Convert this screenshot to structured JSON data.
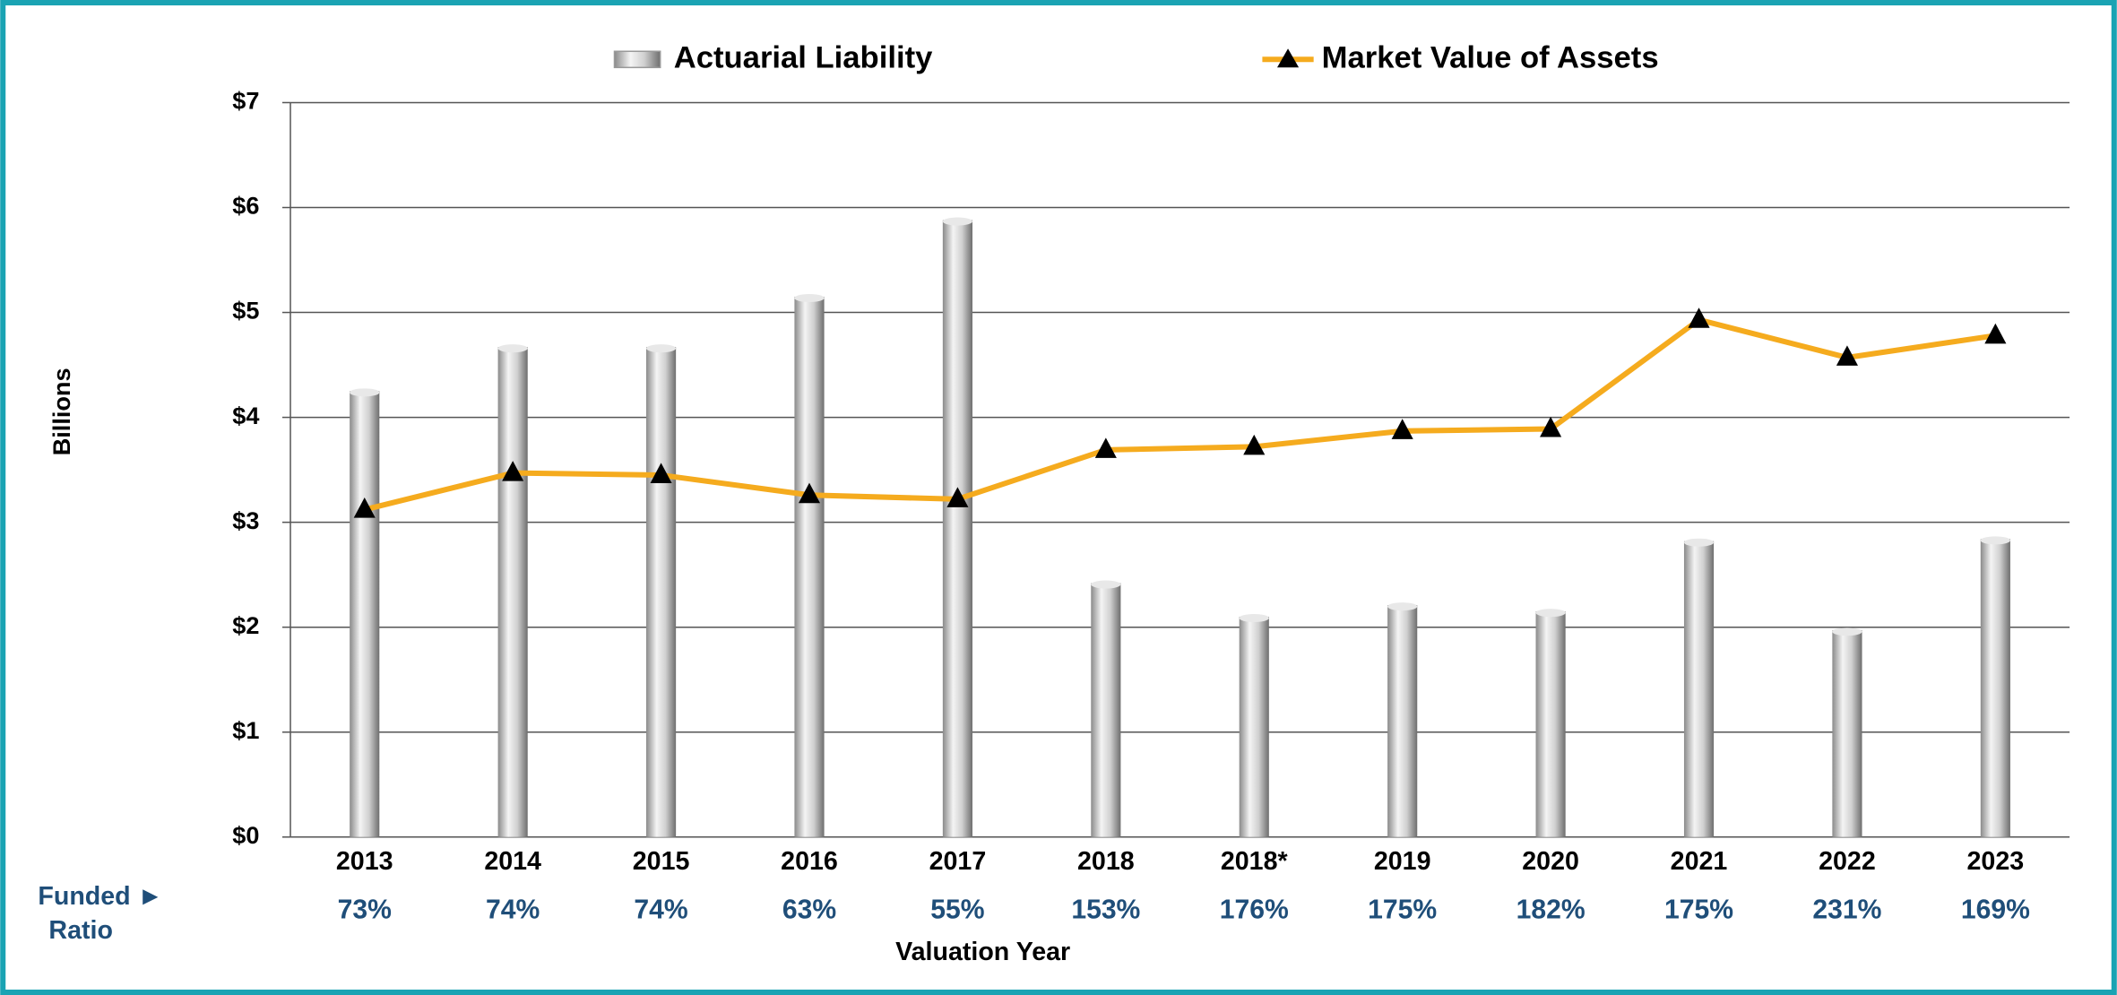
{
  "chart_data": {
    "type": "bar_line",
    "categories": [
      "2013",
      "2014",
      "2015",
      "2016",
      "2017",
      "2018",
      "2018*",
      "2019",
      "2020",
      "2021",
      "2022",
      "2023"
    ],
    "series": [
      {
        "name": "Actuarial Liability",
        "type": "bar",
        "color": "#c8c8c8",
        "values": [
          4.25,
          4.67,
          4.67,
          5.15,
          5.88,
          2.42,
          2.1,
          2.21,
          2.15,
          2.82,
          1.97,
          2.84
        ]
      },
      {
        "name": "Market Value of Assets",
        "type": "line",
        "color": "#f5ab1e",
        "marker_color": "#000000",
        "values": [
          3.12,
          3.47,
          3.45,
          3.26,
          3.22,
          3.69,
          3.72,
          3.87,
          3.89,
          4.93,
          4.57,
          4.78
        ]
      }
    ],
    "ylabel": "Billions",
    "xlabel": "Valuation Year",
    "ylim": [
      0,
      7
    ],
    "yticks": [
      {
        "value": 0,
        "label": "$0"
      },
      {
        "value": 1,
        "label": "$1"
      },
      {
        "value": 2,
        "label": "$2"
      },
      {
        "value": 3,
        "label": "$3"
      },
      {
        "value": 4,
        "label": "$4"
      },
      {
        "value": 5,
        "label": "$5"
      },
      {
        "value": 6,
        "label": "$6"
      },
      {
        "value": 7,
        "label": "$7"
      }
    ],
    "grid": true,
    "funded_ratio": {
      "label": [
        "Funded ►",
        "Ratio"
      ],
      "values": [
        73,
        74,
        74,
        63,
        55,
        153,
        176,
        175,
        182,
        175,
        231,
        169
      ],
      "value_labels": [
        "73%",
        "74%",
        "74%",
        "63%",
        "55%",
        "153%",
        "176%",
        "175%",
        "182%",
        "175%",
        "231%",
        "169%"
      ]
    }
  }
}
